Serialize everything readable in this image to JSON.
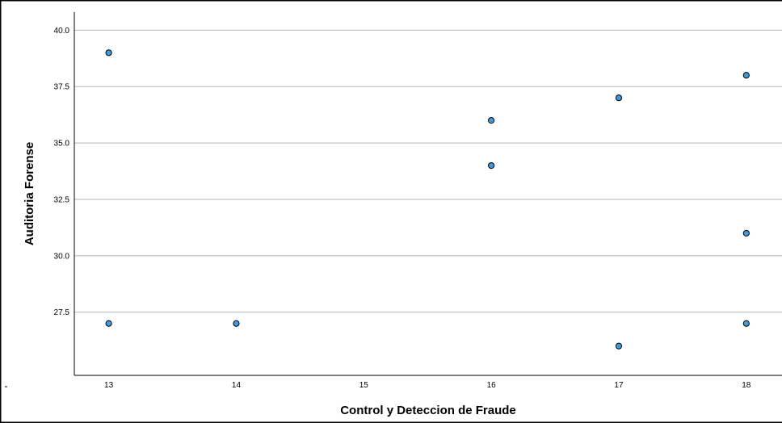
{
  "chart_data": {
    "type": "scatter",
    "title": "",
    "xlabel": "Control y Deteccion de Fraude",
    "ylabel": "Auditoria Forense",
    "xlim": [
      12.73,
      18.28
    ],
    "ylim": [
      24.7,
      40.8
    ],
    "x_ticks": [
      13,
      14,
      15,
      16,
      17,
      18
    ],
    "y_ticks": [
      27.5,
      30.0,
      32.5,
      35.0,
      37.5,
      40.0
    ],
    "y_tick_labels": [
      "27.5",
      "30.0",
      "32.5",
      "35.0",
      "37.5",
      "40.0"
    ],
    "grid": "horizontal",
    "points": [
      {
        "x": 13,
        "y": 39
      },
      {
        "x": 13,
        "y": 27
      },
      {
        "x": 14,
        "y": 27
      },
      {
        "x": 16,
        "y": 36
      },
      {
        "x": 16,
        "y": 34
      },
      {
        "x": 17,
        "y": 37
      },
      {
        "x": 17,
        "y": 26
      },
      {
        "x": 18,
        "y": 38
      },
      {
        "x": 18,
        "y": 31
      },
      {
        "x": 18,
        "y": 27
      }
    ],
    "colors": {
      "marker_fill": "#3f9be0",
      "marker_stroke": "#000000",
      "gridline": "#b5b5b5",
      "axis": "#000000",
      "frame": "#000000"
    }
  }
}
